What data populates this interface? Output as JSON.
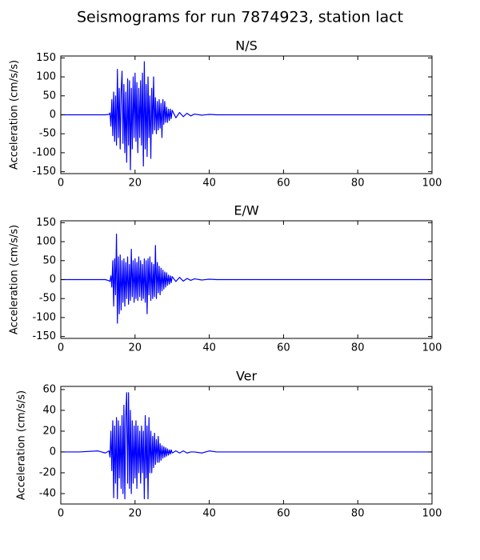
{
  "title": "Seismograms for run 7874923, station lact",
  "chart_data": [
    {
      "type": "line",
      "title": "N/S",
      "ylabel": "Acceleration (cm/s/s)",
      "color": "#0000ff",
      "xlim": [
        0,
        100
      ],
      "xticks": [
        0,
        20,
        40,
        60,
        80,
        100
      ],
      "ylim": [
        -155,
        155
      ],
      "yticks": [
        -150,
        -100,
        -50,
        0,
        50,
        100,
        150
      ],
      "x": [
        0,
        5,
        10,
        12,
        13,
        13.25,
        13.5,
        13.75,
        14,
        14.25,
        14.5,
        14.75,
        15,
        15.25,
        15.5,
        15.75,
        16,
        16.25,
        16.5,
        16.75,
        17,
        17.25,
        17.5,
        17.75,
        18,
        18.25,
        18.5,
        18.75,
        19,
        19.25,
        19.5,
        19.75,
        20,
        20.25,
        20.5,
        20.75,
        21,
        21.25,
        21.5,
        21.75,
        22,
        22.25,
        22.5,
        22.75,
        23,
        23.25,
        23.5,
        23.75,
        24,
        24.25,
        24.5,
        24.75,
        25,
        25.25,
        25.5,
        25.75,
        26,
        26.25,
        26.5,
        26.75,
        27,
        27.25,
        27.5,
        27.75,
        28,
        28.25,
        28.5,
        28.75,
        29,
        29.25,
        29.5,
        29.75,
        30,
        31,
        32,
        33,
        34,
        35,
        36,
        38,
        40,
        42,
        45,
        50,
        60,
        70,
        80,
        90,
        100
      ],
      "values": [
        0,
        0,
        0,
        0,
        1,
        5,
        -30,
        40,
        -55,
        60,
        -70,
        50,
        -80,
        120,
        -60,
        70,
        -90,
        60,
        115,
        -75,
        80,
        -100,
        60,
        -125,
        95,
        -80,
        90,
        -145,
        70,
        -90,
        100,
        -60,
        110,
        -70,
        85,
        -100,
        70,
        -60,
        90,
        -80,
        110,
        -135,
        140,
        -90,
        80,
        -110,
        100,
        -60,
        50,
        -115,
        70,
        -50,
        100,
        -40,
        45,
        -50,
        35,
        -40,
        40,
        -35,
        30,
        -60,
        40,
        -25,
        35,
        -20,
        20,
        -20,
        15,
        -15,
        15,
        -10,
        12,
        -8,
        6,
        -5,
        4,
        -3,
        2,
        -1,
        1,
        0,
        0,
        0,
        0,
        0,
        0,
        0,
        0
      ]
    },
    {
      "type": "line",
      "title": "E/W",
      "ylabel": "Acceleration (cm/s/s)",
      "color": "#0000ff",
      "xlim": [
        0,
        100
      ],
      "xticks": [
        0,
        20,
        40,
        60,
        80,
        100
      ],
      "ylim": [
        -155,
        155
      ],
      "yticks": [
        -150,
        -100,
        -50,
        0,
        50,
        100,
        150
      ],
      "x": [
        0,
        5,
        10,
        12,
        13,
        13.25,
        13.5,
        13.75,
        14,
        14.25,
        14.5,
        14.75,
        15,
        15.25,
        15.5,
        15.75,
        16,
        16.25,
        16.5,
        16.75,
        17,
        17.25,
        17.5,
        17.75,
        18,
        18.25,
        18.5,
        18.75,
        19,
        19.25,
        19.5,
        19.75,
        20,
        20.25,
        20.5,
        20.75,
        21,
        21.25,
        21.5,
        21.75,
        22,
        22.25,
        22.5,
        22.75,
        23,
        23.25,
        23.5,
        23.75,
        24,
        24.25,
        24.5,
        24.75,
        25,
        25.25,
        25.5,
        25.75,
        26,
        26.25,
        26.5,
        26.75,
        27,
        27.25,
        27.5,
        27.75,
        28,
        28.25,
        28.5,
        28.75,
        29,
        29.25,
        29.5,
        29.75,
        30,
        31,
        32,
        33,
        34,
        35,
        36,
        38,
        40,
        42,
        45,
        50,
        60,
        70,
        80,
        90,
        100
      ],
      "values": [
        0,
        0,
        0,
        0,
        -3,
        -5,
        10,
        -20,
        50,
        -70,
        55,
        -40,
        120,
        -115,
        60,
        -90,
        65,
        -80,
        50,
        -60,
        55,
        -70,
        45,
        -50,
        60,
        -65,
        40,
        -55,
        80,
        -45,
        50,
        -60,
        55,
        -50,
        45,
        -55,
        60,
        -45,
        50,
        -55,
        40,
        -50,
        55,
        -60,
        50,
        -90,
        55,
        -40,
        60,
        -55,
        45,
        -50,
        40,
        -45,
        90,
        -50,
        45,
        -35,
        35,
        -40,
        30,
        -30,
        25,
        -25,
        20,
        -20,
        18,
        -15,
        12,
        -12,
        10,
        -8,
        8,
        -5,
        6,
        -4,
        3,
        -2,
        2,
        -1,
        1,
        0,
        0,
        0,
        0,
        0,
        0,
        0,
        0
      ]
    },
    {
      "type": "line",
      "title": "Ver",
      "ylabel": "Acceleration (cm/s/s)",
      "color": "#0000ff",
      "xlim": [
        0,
        100
      ],
      "xticks": [
        0,
        20,
        40,
        60,
        80,
        100
      ],
      "ylim": [
        -50,
        63
      ],
      "yticks": [
        -40,
        -20,
        0,
        20,
        40,
        60
      ],
      "x": [
        0,
        5,
        10,
        12,
        13,
        13.25,
        13.5,
        13.75,
        14,
        14.25,
        14.5,
        14.75,
        15,
        15.25,
        15.5,
        15.75,
        16,
        16.25,
        16.5,
        16.75,
        17,
        17.25,
        17.5,
        17.75,
        18,
        18.25,
        18.5,
        18.75,
        19,
        19.25,
        19.5,
        19.75,
        20,
        20.25,
        20.5,
        20.75,
        21,
        21.25,
        21.5,
        21.75,
        22,
        22.25,
        22.5,
        22.75,
        23,
        23.25,
        23.5,
        23.75,
        24,
        24.25,
        24.5,
        24.75,
        25,
        25.25,
        25.5,
        25.75,
        26,
        26.25,
        26.5,
        26.75,
        27,
        27.25,
        27.5,
        27.75,
        28,
        28.25,
        28.5,
        28.75,
        29,
        29.25,
        29.5,
        29.75,
        30,
        31,
        32,
        33,
        34,
        35,
        36,
        38,
        40,
        42,
        45,
        50,
        60,
        70,
        80,
        90,
        100
      ],
      "values": [
        0,
        0,
        1,
        -1,
        1,
        -5,
        20,
        -18,
        30,
        -44,
        25,
        -30,
        33,
        -45,
        30,
        -25,
        25,
        -35,
        35,
        -40,
        45,
        -45,
        35,
        57,
        -30,
        57,
        -35,
        40,
        -40,
        30,
        -30,
        25,
        -25,
        30,
        -35,
        25,
        -20,
        20,
        -30,
        25,
        -20,
        20,
        -45,
        35,
        -25,
        25,
        -45,
        33,
        -20,
        20,
        -20,
        15,
        -15,
        18,
        -12,
        12,
        -10,
        15,
        -10,
        8,
        -8,
        6,
        -6,
        5,
        -5,
        4,
        -4,
        3,
        -3,
        2,
        -2,
        2,
        -1,
        1,
        -1,
        1,
        -1,
        0,
        0,
        -1,
        1,
        0,
        0,
        0,
        0,
        0,
        0,
        0,
        0
      ]
    }
  ]
}
